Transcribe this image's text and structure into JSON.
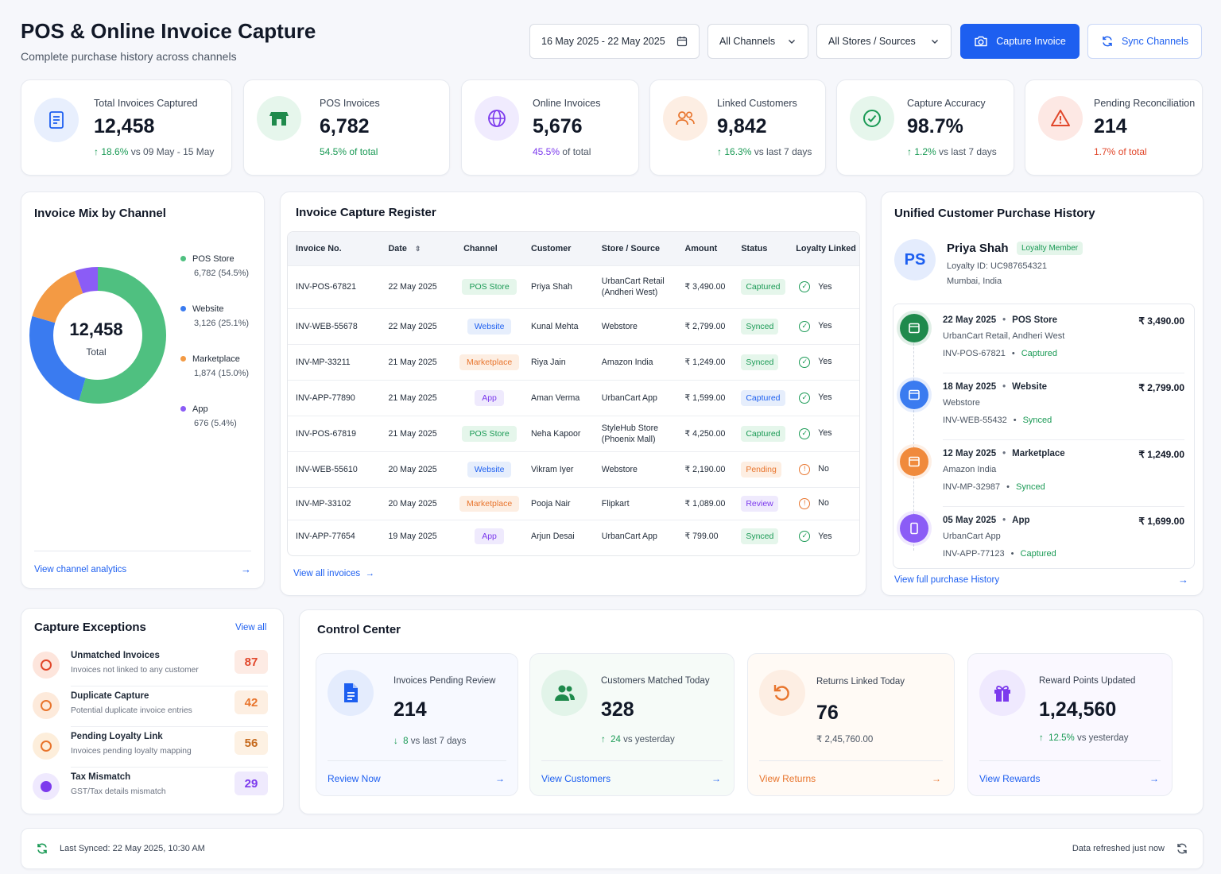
{
  "header": {
    "title": "POS & Online Invoice Capture",
    "subtitle": "Complete purchase history across channels",
    "date_range": "16 May 2025 - 22 May 2025",
    "channel_filter": "All Channels",
    "store_filter": "All Stores / Sources",
    "capture_btn": "Capture Invoice",
    "sync_btn": "Sync Channels"
  },
  "kpis": [
    {
      "label": "Total Invoices Captured",
      "value": "12,458",
      "delta": "18.6%",
      "note": "vs 09 May - 15 May"
    },
    {
      "label": "POS Invoices",
      "value": "6,782",
      "delta": "54.5%",
      "note": "of total"
    },
    {
      "label": "Online Invoices",
      "value": "5,676",
      "delta": "45.5%",
      "note": "of total"
    },
    {
      "label": "Linked Customers",
      "value": "9,842",
      "delta": "16.3%",
      "note": "vs last 7 days"
    },
    {
      "label": "Capture Accuracy",
      "value": "98.7%",
      "delta": "1.2%",
      "note": "vs last 7 days"
    },
    {
      "label": "Pending Reconciliation",
      "value": "214",
      "delta": "1.7%",
      "note": "of total"
    }
  ],
  "mix": {
    "title": "Invoice Mix by Channel",
    "center_value": "12,458",
    "center_label": "Total",
    "link": "View channel analytics",
    "legend": [
      {
        "name": "POS Store",
        "detail": "6,782 (54.5%)"
      },
      {
        "name": "Website",
        "detail": "3,126 (25.1%)"
      },
      {
        "name": "Marketplace",
        "detail": "1,874 (15.0%)"
      },
      {
        "name": "App",
        "detail": "676 (5.4%)"
      }
    ]
  },
  "chart_data": {
    "type": "pie",
    "categories": [
      "POS Store",
      "Website",
      "Marketplace",
      "App"
    ],
    "values": [
      6782,
      3126,
      1874,
      676
    ],
    "colors": [
      "#4fc080",
      "#3a7bf0",
      "#f39a44",
      "#8b5cf6"
    ]
  },
  "register": {
    "title": "Invoice Capture Register",
    "columns": [
      "Invoice No.",
      "Date",
      "Channel",
      "Customer",
      "Store / Source",
      "Amount",
      "Status",
      "Loyalty Linked"
    ],
    "rows": [
      {
        "inv": "INV-POS-67821",
        "date": "22 May 2025",
        "channel": "POS Store",
        "customer": "Priya Shah",
        "store": "UrbanCart Retail (Andheri West)",
        "amount": "₹ 3,490.00",
        "status": "Captured",
        "loyalty": "Yes"
      },
      {
        "inv": "INV-WEB-55678",
        "date": "22 May 2025",
        "channel": "Website",
        "customer": "Kunal Mehta",
        "store": "Webstore",
        "amount": "₹ 2,799.00",
        "status": "Synced",
        "loyalty": "Yes"
      },
      {
        "inv": "INV-MP-33211",
        "date": "21 May 2025",
        "channel": "Marketplace",
        "customer": "Riya Jain",
        "store": "Amazon India",
        "amount": "₹ 1,249.00",
        "status": "Synced",
        "loyalty": "Yes"
      },
      {
        "inv": "INV-APP-77890",
        "date": "21 May 2025",
        "channel": "App",
        "customer": "Aman Verma",
        "store": "UrbanCart App",
        "amount": "₹ 1,599.00",
        "status": "Captured",
        "loyalty": "Yes"
      },
      {
        "inv": "INV-POS-67819",
        "date": "21 May 2025",
        "channel": "POS Store",
        "customer": "Neha Kapoor",
        "store": "StyleHub Store (Phoenix Mall)",
        "amount": "₹ 4,250.00",
        "status": "Captured",
        "loyalty": "Yes"
      },
      {
        "inv": "INV-WEB-55610",
        "date": "20 May 2025",
        "channel": "Website",
        "customer": "Vikram Iyer",
        "store": "Webstore",
        "amount": "₹ 2,190.00",
        "status": "Pending",
        "loyalty": "No"
      },
      {
        "inv": "INV-MP-33102",
        "date": "20 May 2025",
        "channel": "Marketplace",
        "customer": "Pooja Nair",
        "store": "Flipkart",
        "amount": "₹ 1,089.00",
        "status": "Review",
        "loyalty": "No"
      },
      {
        "inv": "INV-APP-77654",
        "date": "19 May 2025",
        "channel": "App",
        "customer": "Arjun Desai",
        "store": "UrbanCart App",
        "amount": "₹ 799.00",
        "status": "Synced",
        "loyalty": "Yes"
      }
    ],
    "link": "View all invoices"
  },
  "history": {
    "title": "Unified Customer Purchase History",
    "initials": "PS",
    "name": "Priya Shah",
    "badge": "Loyalty Member",
    "loyalty_id": "Loyalty ID: UC987654321",
    "location": "Mumbai, India",
    "link": "View full purchase History",
    "items": [
      {
        "date": "22 May 2025",
        "channel": "POS Store",
        "amount": "₹ 3,490.00",
        "store": "UrbanCart Retail, Andheri West",
        "inv": "INV-POS-67821",
        "status": "Captured",
        "color": "#1f8a4c"
      },
      {
        "date": "18 May 2025",
        "channel": "Website",
        "amount": "₹ 2,799.00",
        "store": "Webstore",
        "inv": "INV-WEB-55432",
        "status": "Synced",
        "color": "#3a7bf0"
      },
      {
        "date": "12 May 2025",
        "channel": "Marketplace",
        "amount": "₹ 1,249.00",
        "store": "Amazon India",
        "inv": "INV-MP-32987",
        "status": "Synced",
        "color": "#f08a3c"
      },
      {
        "date": "05 May 2025",
        "channel": "App",
        "amount": "₹ 1,699.00",
        "store": "UrbanCart App",
        "inv": "INV-APP-77123",
        "status": "Captured",
        "color": "#8b5cf6"
      }
    ]
  },
  "exceptions": {
    "title": "Capture Exceptions",
    "link": "View all",
    "items": [
      {
        "title": "Unmatched Invoices",
        "sub": "Invoices not linked to any customer",
        "count": "87"
      },
      {
        "title": "Duplicate Capture",
        "sub": "Potential duplicate invoice entries",
        "count": "42"
      },
      {
        "title": "Pending Loyalty Link",
        "sub": "Invoices pending loyalty mapping",
        "count": "56"
      },
      {
        "title": "Tax Mismatch",
        "sub": "GST/Tax details mismatch",
        "count": "29"
      }
    ]
  },
  "control": {
    "title": "Control Center",
    "cards": [
      {
        "label": "Invoices Pending Review",
        "value": "214",
        "delta": "8",
        "note": "vs last 7 days",
        "action": "Review Now"
      },
      {
        "label": "Customers Matched Today",
        "value": "328",
        "delta": "24",
        "note": "vs yesterday",
        "action": "View Customers"
      },
      {
        "label": "Returns Linked Today",
        "value": "76",
        "delta": "",
        "note": "₹ 2,45,760.00",
        "action": "View Returns"
      },
      {
        "label": "Reward Points Updated",
        "value": "1,24,560",
        "delta": "12.5%",
        "note": "vs yesterday",
        "action": "View Rewards"
      }
    ]
  },
  "footer": {
    "last_synced": "Last Synced: 22 May 2025, 10:30 AM",
    "refreshed": "Data refreshed just now"
  }
}
